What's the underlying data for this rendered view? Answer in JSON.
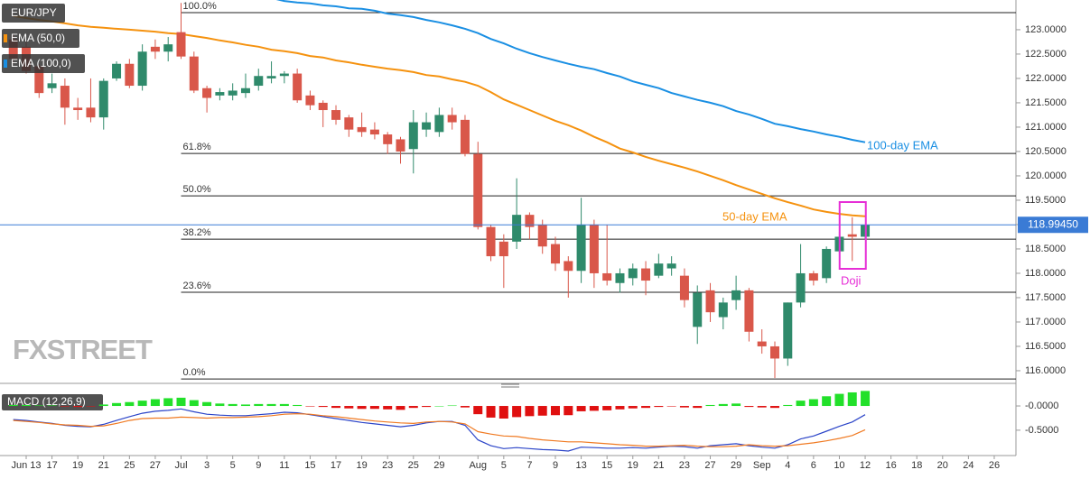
{
  "chart_data": {
    "type": "candlestick",
    "title": "EUR/JPY",
    "categories": [
      null,
      "Jun 13",
      null,
      "17",
      null,
      "19",
      null,
      "21",
      null,
      "25",
      null,
      "27",
      null,
      "Jul",
      null,
      "3",
      null,
      "5",
      null,
      "9",
      null,
      "11",
      null,
      "15",
      null,
      "17",
      null,
      "19",
      null,
      "23",
      null,
      "25",
      null,
      "29",
      null,
      null,
      "Aug",
      null,
      "5",
      null,
      "7",
      null,
      "9",
      null,
      "13",
      null,
      "15",
      null,
      "19",
      null,
      "21",
      null,
      "23",
      null,
      "27",
      null,
      "29",
      null,
      "Sep",
      null,
      "4",
      null,
      "6",
      null,
      "10",
      null,
      "12",
      null,
      "16",
      null,
      "18",
      null,
      "20",
      null,
      "24",
      null,
      "26"
    ],
    "open": [
      122.8,
      122.65,
      122.25,
      121.8,
      121.85,
      121.4,
      121.4,
      121.2,
      122.0,
      122.3,
      121.85,
      122.65,
      122.55,
      122.95,
      122.45,
      121.8,
      121.65,
      121.65,
      121.7,
      121.85,
      122.0,
      122.05,
      122.1,
      121.65,
      121.5,
      121.35,
      121.2,
      121.0,
      120.95,
      120.85,
      120.75,
      120.55,
      120.95,
      120.9,
      121.25,
      121.15,
      120.45,
      118.95,
      118.65,
      118.65,
      119.2,
      119.0,
      118.6,
      118.25,
      118.05,
      119.0,
      118.0,
      117.8,
      117.9,
      118.1,
      117.95,
      118.1,
      117.95,
      116.9,
      117.65,
      117.1,
      117.45,
      117.65,
      116.6,
      116.5,
      116.25,
      117.4,
      118.0,
      117.9,
      118.45,
      118.8,
      118.75,
      null,
      null,
      null,
      null,
      null,
      null,
      null,
      null,
      null,
      null
    ],
    "high": [
      122.9,
      122.75,
      122.3,
      122.1,
      122.0,
      121.6,
      122.0,
      122.0,
      122.35,
      122.4,
      122.7,
      122.8,
      122.85,
      123.55,
      122.55,
      121.85,
      121.8,
      121.9,
      122.1,
      122.2,
      122.35,
      122.15,
      122.2,
      121.75,
      121.55,
      121.45,
      121.25,
      121.3,
      121.1,
      120.9,
      120.8,
      121.35,
      121.3,
      121.4,
      121.4,
      121.25,
      120.7,
      119.0,
      118.8,
      119.95,
      119.25,
      119.1,
      118.75,
      118.35,
      119.55,
      119.1,
      119.0,
      118.1,
      118.2,
      118.25,
      118.4,
      118.35,
      118.1,
      117.75,
      117.8,
      117.5,
      117.95,
      117.7,
      116.85,
      116.6,
      117.4,
      118.6,
      118.05,
      118.55,
      118.85,
      119.15,
      119.0,
      null,
      null,
      null,
      null,
      null,
      null,
      null,
      null,
      null,
      null
    ],
    "low": [
      122.3,
      122.1,
      121.6,
      121.7,
      121.05,
      121.15,
      121.1,
      120.95,
      121.95,
      121.8,
      121.75,
      122.4,
      122.35,
      122.4,
      121.7,
      121.3,
      121.55,
      121.55,
      121.6,
      121.75,
      121.9,
      121.9,
      121.5,
      121.35,
      121.0,
      121.05,
      120.8,
      120.8,
      120.75,
      120.45,
      120.25,
      120.05,
      120.8,
      120.8,
      120.95,
      120.4,
      118.9,
      118.25,
      117.7,
      118.5,
      118.7,
      118.4,
      118.05,
      117.5,
      117.8,
      117.7,
      117.75,
      117.6,
      117.75,
      117.55,
      117.9,
      117.95,
      117.3,
      116.55,
      117.0,
      116.85,
      117.25,
      116.6,
      116.35,
      115.85,
      116.1,
      117.3,
      117.75,
      117.8,
      118.4,
      118.25,
      118.7,
      null,
      null,
      null,
      null,
      null,
      null,
      null,
      null,
      null,
      null
    ],
    "close": [
      122.4,
      122.15,
      121.7,
      121.9,
      121.4,
      121.35,
      121.2,
      121.95,
      122.3,
      121.85,
      122.55,
      122.55,
      122.7,
      122.45,
      121.75,
      121.6,
      121.72,
      121.75,
      121.8,
      122.05,
      122.05,
      122.1,
      121.55,
      121.45,
      121.35,
      121.15,
      120.95,
      120.9,
      120.85,
      120.65,
      120.5,
      121.1,
      121.1,
      121.25,
      121.1,
      120.45,
      118.95,
      118.35,
      118.35,
      119.2,
      118.95,
      118.55,
      118.2,
      118.05,
      119.0,
      118.0,
      117.85,
      118.0,
      118.1,
      117.85,
      118.2,
      118.2,
      117.45,
      117.6,
      117.2,
      117.4,
      117.65,
      116.8,
      116.5,
      116.25,
      117.4,
      118.0,
      117.85,
      118.5,
      118.75,
      118.75,
      118.99,
      null,
      null,
      null,
      null,
      null,
      null,
      null,
      null,
      null,
      null
    ],
    "up_color": "#2f8a6b",
    "down_color": "#d9574a",
    "ylim": [
      115.74,
      123.61
    ],
    "yticks": [
      {
        "value": 116.0,
        "label": "116.0000"
      },
      {
        "value": 116.5,
        "label": "116.5000"
      },
      {
        "value": 117.0,
        "label": "117.0000"
      },
      {
        "value": 117.5,
        "label": "117.5000"
      },
      {
        "value": 118.0,
        "label": "118.0000"
      },
      {
        "value": 118.5,
        "label": "118.5000"
      },
      {
        "value": 119.0,
        "label": "119.0000"
      },
      {
        "value": 119.5,
        "label": "119.5000"
      },
      {
        "value": 120.0,
        "label": "120.0000"
      },
      {
        "value": 120.5,
        "label": "120.5000"
      },
      {
        "value": 121.0,
        "label": "121.0000"
      },
      {
        "value": 121.5,
        "label": "121.5000"
      },
      {
        "value": 122.0,
        "label": "122.0000"
      },
      {
        "value": 122.5,
        "label": "122.5000"
      },
      {
        "value": 123.0,
        "label": "123.0000"
      }
    ],
    "series": [
      {
        "name": "EMA (50,0)",
        "color": "#f5920f",
        "values": [
          123.28,
          123.24,
          123.2,
          123.17,
          123.13,
          123.09,
          123.06,
          123.04,
          123.02,
          123.0,
          122.98,
          122.96,
          122.93,
          122.91,
          122.87,
          122.83,
          122.78,
          122.74,
          122.69,
          122.65,
          122.59,
          122.56,
          122.52,
          122.46,
          122.43,
          122.37,
          122.33,
          122.28,
          122.24,
          122.2,
          122.17,
          122.13,
          122.07,
          122.04,
          121.98,
          121.93,
          121.85,
          121.72,
          121.57,
          121.46,
          121.35,
          121.24,
          121.13,
          121.04,
          120.93,
          120.8,
          120.69,
          120.56,
          120.48,
          120.39,
          120.31,
          120.24,
          120.17,
          120.09,
          120.0,
          119.91,
          119.81,
          119.72,
          119.63,
          119.54,
          119.46,
          119.39,
          119.31,
          119.26,
          119.22,
          119.19,
          119.17,
          null,
          null,
          null,
          null,
          null,
          null,
          null,
          null,
          null,
          null
        ]
      },
      {
        "name": "EMA (100,0)",
        "color": "#1a8fe3",
        "values": [
          null,
          null,
          null,
          null,
          null,
          null,
          null,
          null,
          null,
          null,
          null,
          null,
          null,
          null,
          null,
          null,
          null,
          null,
          null,
          null,
          123.65,
          123.59,
          123.56,
          123.54,
          123.5,
          123.48,
          123.44,
          123.43,
          123.39,
          123.33,
          123.3,
          123.26,
          123.2,
          123.15,
          123.09,
          123.02,
          122.93,
          122.81,
          122.72,
          122.61,
          122.52,
          122.44,
          122.37,
          122.3,
          122.24,
          122.19,
          122.11,
          122.04,
          121.94,
          121.87,
          121.8,
          121.7,
          121.63,
          121.56,
          121.5,
          121.43,
          121.33,
          121.26,
          121.17,
          121.07,
          121.02,
          120.96,
          120.91,
          120.85,
          120.8,
          120.74,
          120.69,
          null,
          null,
          null,
          null,
          null,
          null,
          null,
          null,
          null,
          null
        ]
      }
    ],
    "fib_levels": [
      {
        "label": "100.0%",
        "value": 123.35
      },
      {
        "label": "61.8%",
        "value": 120.46
      },
      {
        "label": "50.0%",
        "value": 119.59
      },
      {
        "label": "38.2%",
        "value": 118.7
      },
      {
        "label": "23.6%",
        "value": 117.61
      },
      {
        "label": "0.0%",
        "value": 115.83
      }
    ],
    "last_price": {
      "value": 118.9945,
      "label": "118.99450",
      "color": "#3a7bd5"
    },
    "annotations": [
      {
        "text": "100-day EMA",
        "color": "#1a8fe3"
      },
      {
        "text": "50-day EMA",
        "color": "#f5920f"
      },
      {
        "text": "Doji",
        "color": "#e62ed6"
      }
    ],
    "watermark": "FXSTREET",
    "macd": {
      "title": "MACD (12,26,9)",
      "ylim": [
        -0.93,
        0.41
      ],
      "yticks": [
        {
          "value": 0,
          "label": "-0.0000"
        },
        {
          "value": -0.5,
          "label": "-0.5000"
        }
      ],
      "histogram": {
        "up_color": "#22e02a",
        "down_color": "#e01010",
        "values": [
          0.02,
          0.02,
          0.01,
          0.01,
          -0.01,
          -0.02,
          -0.01,
          0.03,
          0.06,
          0.08,
          0.11,
          0.14,
          0.16,
          0.17,
          0.12,
          0.08,
          0.05,
          0.04,
          0.03,
          0.04,
          0.04,
          0.04,
          0.02,
          -0.01,
          -0.02,
          -0.04,
          -0.05,
          -0.06,
          -0.06,
          -0.07,
          -0.08,
          -0.04,
          -0.02,
          0.0,
          0.01,
          -0.03,
          -0.17,
          -0.24,
          -0.26,
          -0.23,
          -0.21,
          -0.2,
          -0.19,
          -0.19,
          -0.11,
          -0.1,
          -0.09,
          -0.07,
          -0.05,
          -0.04,
          -0.02,
          -0.01,
          -0.03,
          -0.04,
          0.02,
          0.04,
          0.05,
          -0.02,
          -0.03,
          -0.04,
          0.02,
          0.11,
          0.14,
          0.2,
          0.25,
          0.28,
          0.31,
          null,
          null,
          null,
          null,
          null,
          null,
          null,
          null,
          null,
          null
        ]
      },
      "macd_line": {
        "color": "#2b44c8",
        "values": [
          -0.28,
          -0.3,
          -0.33,
          -0.36,
          -0.4,
          -0.42,
          -0.43,
          -0.38,
          -0.3,
          -0.22,
          -0.15,
          -0.11,
          -0.09,
          -0.06,
          -0.12,
          -0.17,
          -0.19,
          -0.2,
          -0.2,
          -0.18,
          -0.16,
          -0.13,
          -0.14,
          -0.18,
          -0.22,
          -0.26,
          -0.3,
          -0.34,
          -0.37,
          -0.4,
          -0.43,
          -0.4,
          -0.35,
          -0.32,
          -0.32,
          -0.4,
          -0.7,
          -0.82,
          -0.88,
          -0.86,
          -0.88,
          -0.9,
          -0.91,
          -0.93,
          -0.85,
          -0.86,
          -0.87,
          -0.87,
          -0.86,
          -0.87,
          -0.85,
          -0.83,
          -0.84,
          -0.87,
          -0.82,
          -0.8,
          -0.78,
          -0.82,
          -0.85,
          -0.87,
          -0.8,
          -0.68,
          -0.62,
          -0.52,
          -0.42,
          -0.33,
          -0.18,
          null,
          null,
          null,
          null,
          null,
          null,
          null,
          null,
          null,
          null
        ]
      },
      "signal_line": {
        "color": "#f07a22",
        "values": [
          -0.3,
          -0.32,
          -0.34,
          -0.37,
          -0.39,
          -0.4,
          -0.42,
          -0.41,
          -0.36,
          -0.3,
          -0.26,
          -0.25,
          -0.25,
          -0.23,
          -0.24,
          -0.25,
          -0.24,
          -0.24,
          -0.23,
          -0.22,
          -0.2,
          -0.17,
          -0.16,
          -0.17,
          -0.2,
          -0.22,
          -0.25,
          -0.28,
          -0.31,
          -0.33,
          -0.35,
          -0.36,
          -0.33,
          -0.32,
          -0.33,
          -0.37,
          -0.53,
          -0.58,
          -0.62,
          -0.63,
          -0.67,
          -0.7,
          -0.72,
          -0.74,
          -0.74,
          -0.76,
          -0.78,
          -0.8,
          -0.81,
          -0.83,
          -0.83,
          -0.82,
          -0.81,
          -0.83,
          -0.84,
          -0.84,
          -0.83,
          -0.8,
          -0.82,
          -0.83,
          -0.82,
          -0.79,
          -0.76,
          -0.72,
          -0.67,
          -0.61,
          -0.49,
          null,
          null,
          null,
          null,
          null,
          null,
          null,
          null,
          null,
          null
        ]
      }
    }
  }
}
